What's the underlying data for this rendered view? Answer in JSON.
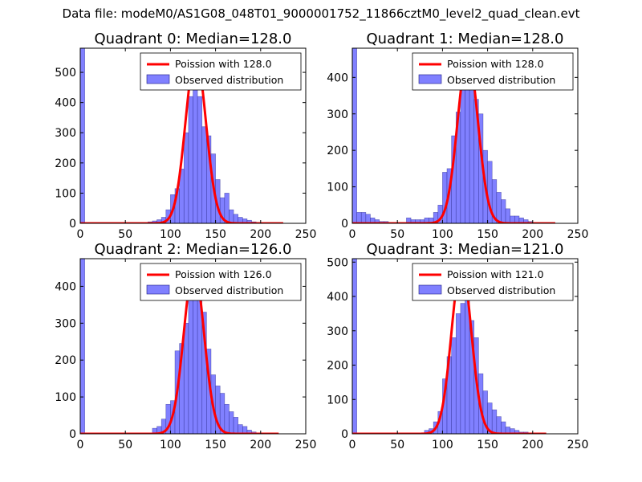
{
  "figure": {
    "suptitle": "Data file: modeM0/AS1G08_048T01_9000001752_11866cztM0_level2_quad_clean.evt"
  },
  "colors": {
    "fit_line": "#ff0000",
    "bar_fill": "#8080ff",
    "bar_edge": "#1a1a80",
    "axis": "#000000",
    "legend_edge": "#000000"
  },
  "chart_data": [
    {
      "type": "bar",
      "title": "Quadrant 0: Median=128.0",
      "xlim": [
        0,
        250
      ],
      "ylim": [
        0,
        580
      ],
      "xticks": [
        0,
        50,
        100,
        150,
        200,
        250
      ],
      "yticks": [
        0,
        100,
        200,
        300,
        400,
        500
      ],
      "bin_width": 5,
      "legend": {
        "location": "upper right",
        "entries": [
          "Poission with 128.0",
          "Observed distribution"
        ]
      },
      "fit": {
        "name": "Poission with 128.0",
        "mean": 128.0,
        "peak": 555,
        "x_range": [
          0,
          225
        ]
      },
      "series": [
        {
          "name": "Observed distribution",
          "bins": [
            [
              0,
              580
            ],
            [
              75,
              5
            ],
            [
              80,
              8
            ],
            [
              85,
              12
            ],
            [
              90,
              20
            ],
            [
              95,
              45
            ],
            [
              100,
              95
            ],
            [
              105,
              115
            ],
            [
              110,
              180
            ],
            [
              115,
              300
            ],
            [
              120,
              420
            ],
            [
              125,
              480
            ],
            [
              130,
              420
            ],
            [
              135,
              320
            ],
            [
              140,
              290
            ],
            [
              145,
              230
            ],
            [
              150,
              145
            ],
            [
              155,
              85
            ],
            [
              160,
              100
            ],
            [
              165,
              45
            ],
            [
              170,
              30
            ],
            [
              175,
              20
            ],
            [
              180,
              15
            ],
            [
              185,
              10
            ],
            [
              190,
              5
            ],
            [
              195,
              3
            ]
          ]
        }
      ]
    },
    {
      "type": "bar",
      "title": "Quadrant 1: Median=128.0",
      "xlim": [
        0,
        250
      ],
      "ylim": [
        0,
        480
      ],
      "xticks": [
        0,
        50,
        100,
        150,
        200,
        250
      ],
      "yticks": [
        0,
        100,
        200,
        300,
        400
      ],
      "bin_width": 5,
      "legend": {
        "location": "upper right",
        "entries": [
          "Poission with 128.0",
          "Observed distribution"
        ]
      },
      "fit": {
        "name": "Poission with 128.0",
        "mean": 128.0,
        "peak": 460,
        "x_range": [
          0,
          225
        ]
      },
      "series": [
        {
          "name": "Observed distribution",
          "bins": [
            [
              0,
              480
            ],
            [
              5,
              30
            ],
            [
              10,
              30
            ],
            [
              15,
              25
            ],
            [
              20,
              15
            ],
            [
              25,
              10
            ],
            [
              30,
              5
            ],
            [
              35,
              5
            ],
            [
              60,
              15
            ],
            [
              65,
              10
            ],
            [
              70,
              10
            ],
            [
              75,
              10
            ],
            [
              80,
              15
            ],
            [
              85,
              15
            ],
            [
              90,
              30
            ],
            [
              95,
              50
            ],
            [
              100,
              140
            ],
            [
              105,
              150
            ],
            [
              110,
              240
            ],
            [
              115,
              305
            ],
            [
              120,
              390
            ],
            [
              125,
              440
            ],
            [
              130,
              430
            ],
            [
              135,
              340
            ],
            [
              140,
              300
            ],
            [
              145,
              200
            ],
            [
              150,
              170
            ],
            [
              155,
              120
            ],
            [
              160,
              85
            ],
            [
              165,
              65
            ],
            [
              170,
              40
            ],
            [
              175,
              20
            ],
            [
              180,
              20
            ],
            [
              185,
              15
            ],
            [
              190,
              10
            ],
            [
              195,
              5
            ]
          ]
        }
      ]
    },
    {
      "type": "bar",
      "title": "Quadrant 2: Median=126.0",
      "xlim": [
        0,
        250
      ],
      "ylim": [
        0,
        475
      ],
      "xticks": [
        0,
        50,
        100,
        150,
        200,
        250
      ],
      "yticks": [
        0,
        100,
        200,
        300,
        400
      ],
      "bin_width": 5,
      "legend": {
        "location": "upper right",
        "entries": [
          "Poission with 126.0",
          "Observed distribution"
        ]
      },
      "fit": {
        "name": "Poission with 126.0",
        "mean": 126.0,
        "peak": 450,
        "x_range": [
          0,
          220
        ]
      },
      "series": [
        {
          "name": "Observed distribution",
          "bins": [
            [
              0,
              475
            ],
            [
              80,
              15
            ],
            [
              85,
              20
            ],
            [
              90,
              40
            ],
            [
              95,
              80
            ],
            [
              100,
              90
            ],
            [
              105,
              225
            ],
            [
              110,
              245
            ],
            [
              115,
              300
            ],
            [
              120,
              375
            ],
            [
              125,
              440
            ],
            [
              130,
              380
            ],
            [
              135,
              330
            ],
            [
              140,
              230
            ],
            [
              145,
              160
            ],
            [
              150,
              130
            ],
            [
              155,
              110
            ],
            [
              160,
              80
            ],
            [
              165,
              60
            ],
            [
              170,
              45
            ],
            [
              175,
              25
            ],
            [
              180,
              20
            ],
            [
              185,
              10
            ],
            [
              190,
              5
            ]
          ]
        }
      ]
    },
    {
      "type": "bar",
      "title": "Quadrant 3: Median=121.0",
      "xlim": [
        0,
        250
      ],
      "ylim": [
        0,
        510
      ],
      "xticks": [
        0,
        50,
        100,
        150,
        200,
        250
      ],
      "yticks": [
        0,
        100,
        200,
        300,
        400,
        500
      ],
      "bin_width": 5,
      "legend": {
        "location": "upper right",
        "entries": [
          "Poission with 121.0",
          "Observed distribution"
        ]
      },
      "fit": {
        "name": "Poission with 121.0",
        "mean": 121.0,
        "peak": 490,
        "x_range": [
          0,
          215
        ]
      },
      "series": [
        {
          "name": "Observed distribution",
          "bins": [
            [
              0,
              510
            ],
            [
              80,
              10
            ],
            [
              85,
              15
            ],
            [
              90,
              35
            ],
            [
              95,
              65
            ],
            [
              100,
              160
            ],
            [
              105,
              225
            ],
            [
              110,
              280
            ],
            [
              115,
              350
            ],
            [
              120,
              380
            ],
            [
              125,
              390
            ],
            [
              130,
              330
            ],
            [
              135,
              280
            ],
            [
              140,
              175
            ],
            [
              145,
              125
            ],
            [
              150,
              90
            ],
            [
              155,
              70
            ],
            [
              160,
              50
            ],
            [
              165,
              35
            ],
            [
              170,
              20
            ],
            [
              175,
              15
            ],
            [
              180,
              10
            ],
            [
              185,
              5
            ],
            [
              190,
              5
            ]
          ]
        }
      ]
    }
  ]
}
